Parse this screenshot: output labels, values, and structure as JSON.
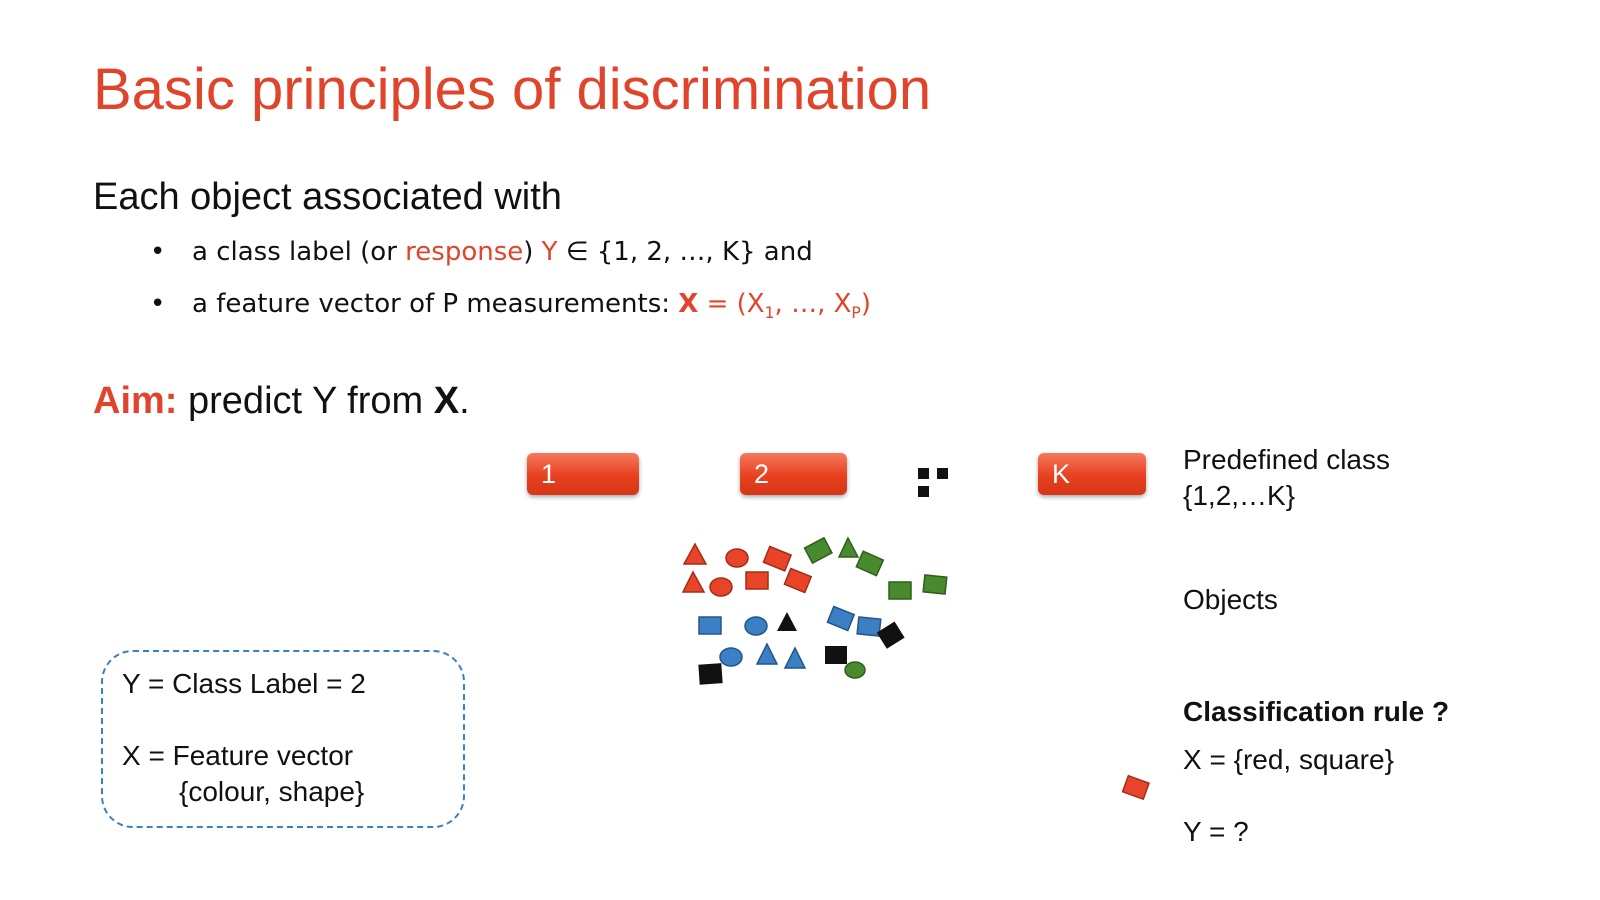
{
  "slide": {
    "title": "Basic principles of discrimination",
    "intro": "Each object associated with",
    "bullets": {
      "b1": {
        "dot": "•",
        "pre": "a class label (or ",
        "response": "response",
        "close": ")",
        "y": " Y",
        "rest": " ∈ {1, 2, …, K} and"
      },
      "b2": {
        "dot": "•",
        "pre": "a feature vector of P measurements: ",
        "x": "X",
        "eq": " = (X",
        "sub1": "1",
        "mid": ", …, X",
        "subp": "P",
        "end": ")"
      }
    },
    "aim": {
      "label": "Aim:",
      "text": " predict Y from ",
      "x": "X",
      "period": "."
    }
  },
  "classes": {
    "buttons": [
      "1",
      "2",
      "K"
    ],
    "ellipsis": "…",
    "predefined_line1": "Predefined  class",
    "predefined_line2": "{1,2,…K}"
  },
  "objects_label": "Objects",
  "rule": {
    "heading": "Classification rule ?",
    "x_line": "X = {red, square}",
    "y_line": "Y = ?"
  },
  "info_box": {
    "y_line": "Y = Class Label = 2",
    "x_line": "X = Feature vector",
    "x_detail": "{colour, shape}"
  },
  "colors": {
    "accent": "#e0452c",
    "red_shape": "#e8442a",
    "blue_shape": "#3b7fc4",
    "green_shape": "#4a8a2f",
    "black_shape": "#111111",
    "box_border": "#3b7fc4"
  }
}
